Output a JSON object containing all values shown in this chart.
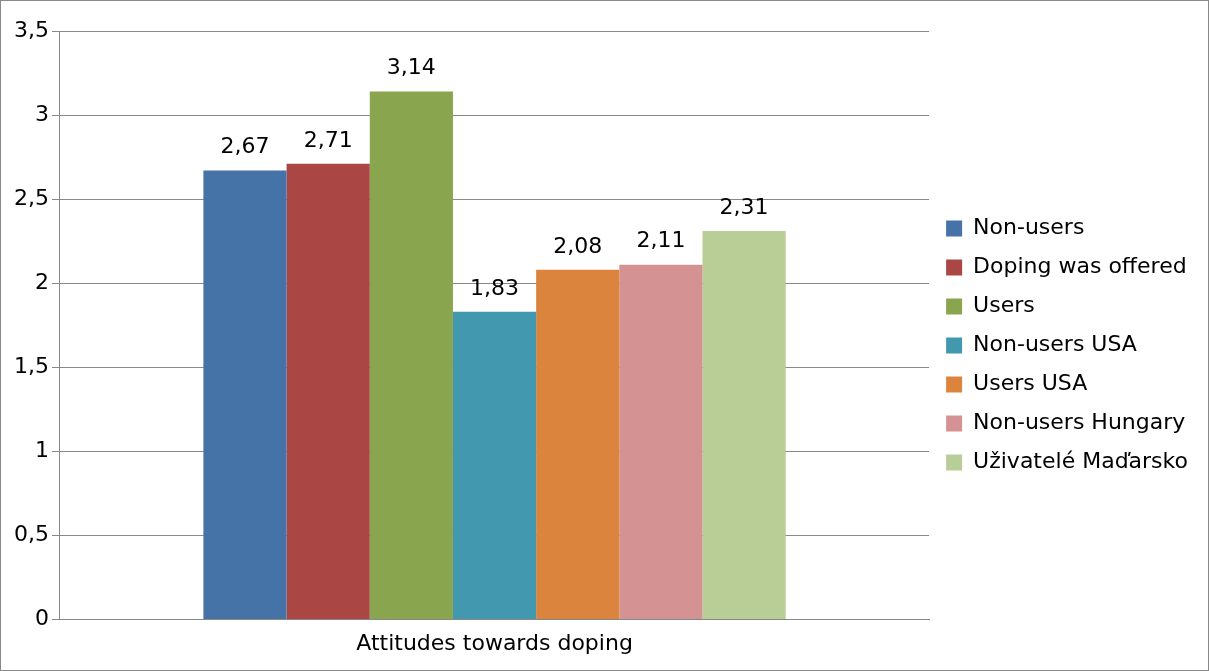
{
  "chart_data": {
    "type": "bar",
    "categories": [
      "Attitudes towards doping"
    ],
    "series": [
      {
        "name": "Non-users",
        "color": "#4572a7",
        "values": [
          2.67
        ],
        "value_labels": [
          "2,67"
        ]
      },
      {
        "name": "Doping was offered",
        "color": "#aa4643",
        "values": [
          2.71
        ],
        "value_labels": [
          "2,71"
        ]
      },
      {
        "name": "Users",
        "color": "#89a54e",
        "values": [
          3.14
        ],
        "value_labels": [
          "3,14"
        ]
      },
      {
        "name": "Non-users USA",
        "color": "#4198af",
        "values": [
          1.83
        ],
        "value_labels": [
          "1,83"
        ]
      },
      {
        "name": "Users USA",
        "color": "#db843d",
        "values": [
          2.08
        ],
        "value_labels": [
          "2,08"
        ]
      },
      {
        "name": "Non-users Hungary",
        "color": "#d49292",
        "values": [
          2.11
        ],
        "value_labels": [
          "2,11"
        ]
      },
      {
        "name": "Uživatelé Maďarsko",
        "color": "#b9cd96",
        "values": [
          2.31
        ],
        "value_labels": [
          "2,31"
        ]
      }
    ],
    "ylim": [
      0,
      3.5
    ],
    "yticks": [
      0,
      {
        "value": 0.5,
        "label": "0,5"
      },
      1,
      {
        "value": 1.5,
        "label": "1,5"
      },
      2,
      {
        "value": 2.5,
        "label": "2,5"
      },
      3,
      {
        "value": 3.5,
        "label": "3,5"
      }
    ],
    "grid": "y",
    "legend": "right"
  }
}
